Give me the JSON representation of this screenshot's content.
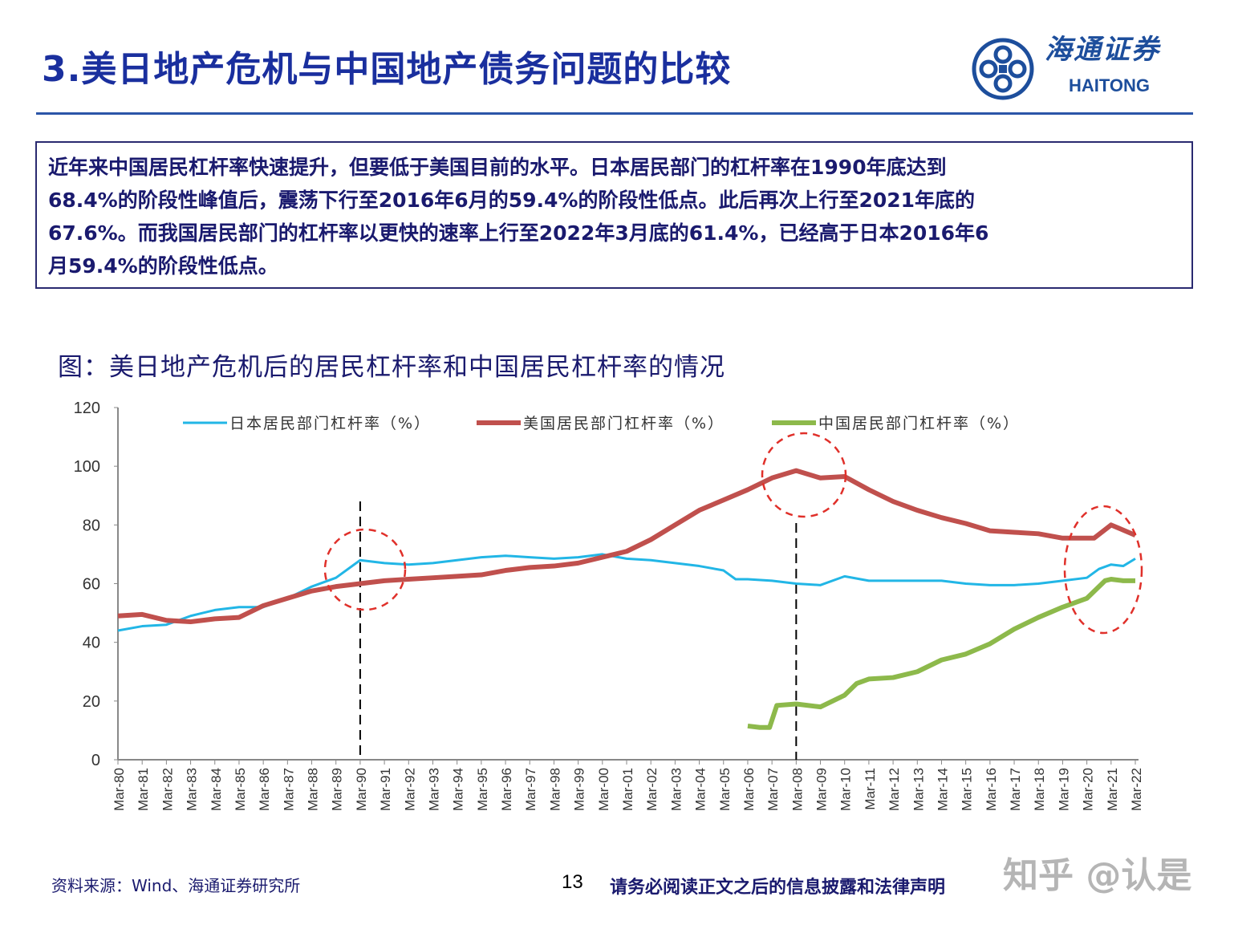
{
  "header": {
    "title": "3.美日地产危机与中国地产债务问题的比较",
    "logo_cn": "海通证券",
    "logo_en": "HAITONG"
  },
  "summary": {
    "lines": [
      "近年来中国居民杠杆率快速提升，但要低于美国目前的水平。日本居民部门的杠杆率在1990年底达到",
      "68.4%的阶段性峰值后，震荡下行至2016年6月的59.4%的阶段性低点。此后再次上行至2021年底的",
      "67.6%。而我国居民部门的杠杆率以更快的速率上行至2022年3月底的61.4%，已经高于日本2016年6",
      "月59.4%的阶段性低点。"
    ]
  },
  "chart_caption": "图：美日地产危机后的居民杠杆率和中国居民杠杆率的情况",
  "chart_data": {
    "type": "line",
    "title": "",
    "xlabel": "",
    "ylabel": "",
    "ylim": [
      0,
      120
    ],
    "yticks": [
      "0",
      "20",
      "40",
      "60",
      "80",
      "100",
      "120"
    ],
    "xticks": [
      "Mar-80",
      "Mar-81",
      "Mar-82",
      "Mar-83",
      "Mar-84",
      "Mar-85",
      "Mar-86",
      "Mar-87",
      "Mar-88",
      "Mar-89",
      "Mar-90",
      "Mar-91",
      "Mar-92",
      "Mar-93",
      "Mar-94",
      "Mar-95",
      "Mar-96",
      "Mar-97",
      "Mar-98",
      "Mar-99",
      "Mar-00",
      "Mar-01",
      "Mar-02",
      "Mar-03",
      "Mar-04",
      "Mar-05",
      "Mar-06",
      "Mar-07",
      "Mar-08",
      "Mar-09",
      "Mar-10",
      "Mar-11",
      "Mar-12",
      "Mar-13",
      "Mar-14",
      "Mar-15",
      "Mar-16",
      "Mar-17",
      "Mar-18",
      "Mar-19",
      "Mar-20",
      "Mar-21",
      "Mar-22"
    ],
    "legend_position": "top",
    "series": [
      {
        "name": "日本居民部门杠杆率（%）",
        "color": "#22b6e6",
        "x": [
          1980,
          1981,
          1982,
          1983,
          1984,
          1985,
          1986,
          1987,
          1988,
          1989,
          1990,
          1991,
          1992,
          1993,
          1994,
          1995,
          1996,
          1997,
          1998,
          1999,
          2000,
          2001,
          2002,
          2003,
          2004,
          2005,
          2005.5,
          2006,
          2007,
          2008,
          2009,
          2010,
          2011,
          2012,
          2013,
          2014,
          2015,
          2016,
          2017,
          2018,
          2019,
          2020,
          2020.5,
          2021,
          2021.5,
          2022
        ],
        "y": [
          44,
          45.5,
          46,
          49,
          51,
          52,
          52,
          55,
          59,
          62,
          68,
          67,
          66.5,
          67,
          68,
          69,
          69.5,
          69,
          68.5,
          69,
          70,
          68.5,
          68,
          67,
          66,
          64.5,
          61.5,
          61.5,
          61,
          60,
          59.5,
          62.5,
          61,
          61,
          61,
          61,
          60,
          59.5,
          59.5,
          60,
          61,
          62,
          65,
          66.5,
          66,
          68.5
        ]
      },
      {
        "name": "美国居民部门杠杆率（%）",
        "color": "#c0504d",
        "x": [
          1980,
          1981,
          1982,
          1983,
          1984,
          1985,
          1986,
          1987,
          1988,
          1989,
          1990,
          1991,
          1992,
          1993,
          1994,
          1995,
          1996,
          1997,
          1998,
          1999,
          2000,
          2001,
          2002,
          2003,
          2004,
          2005,
          2006,
          2007,
          2008,
          2009,
          2010,
          2011,
          2012,
          2013,
          2014,
          2015,
          2016,
          2017,
          2018,
          2019,
          2020,
          2020.3,
          2021,
          2022
        ],
        "y": [
          49,
          49.5,
          47.5,
          47,
          48,
          48.5,
          52.5,
          55,
          57.5,
          59,
          60,
          61,
          61.5,
          62,
          62.5,
          63,
          64.5,
          65.5,
          66,
          67,
          69,
          71,
          75,
          80,
          85,
          88.5,
          92,
          96,
          98.5,
          96,
          96.5,
          92,
          88,
          85,
          82.5,
          80.5,
          78,
          77.5,
          77,
          75.5,
          75.5,
          75.5,
          80,
          76.5
        ]
      },
      {
        "name": "中国居民部门杠杆率（%）",
        "color": "#8db94b",
        "x": [
          2006,
          2006.5,
          2006.9,
          2007.2,
          2008,
          2009,
          2010,
          2010.5,
          2011,
          2012,
          2013,
          2014,
          2015,
          2016,
          2017,
          2018,
          2019,
          2020,
          2020.75,
          2021,
          2021.5,
          2022
        ],
        "y": [
          11.5,
          11,
          11,
          18.5,
          19,
          18,
          22,
          26,
          27.5,
          28,
          30,
          34,
          36,
          39.5,
          44.5,
          48.5,
          52,
          55,
          61,
          61.5,
          61,
          61
        ]
      }
    ],
    "annotations": [
      "dashed vertical line at Mar-90",
      "dashed vertical line at Mar-08",
      "dashed circle around 1990",
      "dashed circle around 2008",
      "dashed ellipse around 2020-2022"
    ]
  },
  "footer": {
    "source": "资料来源：Wind、海通证券研究所",
    "page_number": "13",
    "disclaimer": "请务必阅读正文之后的信息披露和法律声明",
    "watermark": "知乎 @认是"
  }
}
